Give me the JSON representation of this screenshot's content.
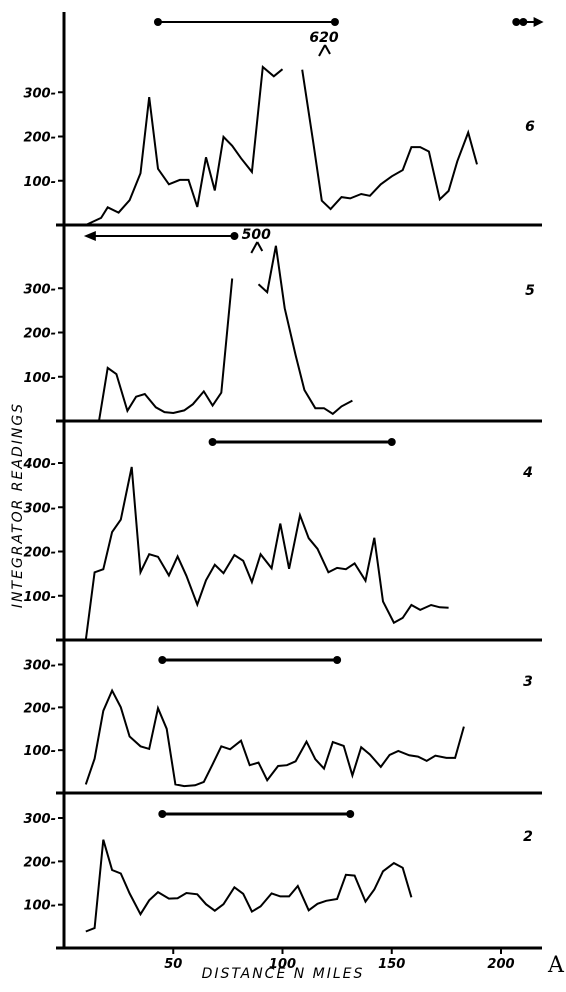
{
  "chart_data": {
    "type": "line",
    "x_label": "DISTANCE N MILES",
    "y_label": "INTEGRATOR READINGS",
    "figure_letter": "A",
    "x_ticks": [
      50,
      100,
      150,
      200
    ],
    "x_range": [
      0,
      218
    ],
    "panels": [
      {
        "name": "6",
        "y_ticks": [
          100,
          200,
          300
        ],
        "y_range": [
          0,
          420
        ],
        "bar": {
          "x_start": 43,
          "x_end": 124
        },
        "arrow": {
          "x_start": 207,
          "x_end": 214
        },
        "annotation": {
          "text": "620",
          "x": 119
        },
        "segments": [
          [
            [
              10,
              0
            ],
            [
              17,
              16
            ],
            [
              20,
              40
            ],
            [
              25,
              28
            ],
            [
              30,
              56
            ],
            [
              35,
              117
            ],
            [
              39,
              289
            ],
            [
              43,
              127
            ],
            [
              48,
              92
            ],
            [
              53,
              102
            ],
            [
              57,
              102
            ],
            [
              61,
              41
            ],
            [
              65,
              153
            ],
            [
              69,
              78
            ],
            [
              73,
              199
            ],
            [
              77,
              179
            ],
            [
              81,
              151
            ],
            [
              86,
              120
            ],
            [
              91,
              357
            ],
            [
              96,
              336
            ],
            [
              100,
              352
            ]
          ],
          [
            [
              109,
              351
            ],
            [
              114,
              189
            ],
            [
              118,
              55
            ],
            [
              122,
              36
            ],
            [
              127,
              63
            ],
            [
              131,
              60
            ],
            [
              136,
              70
            ],
            [
              140,
              66
            ],
            [
              145,
              92
            ],
            [
              150,
              110
            ],
            [
              155,
              124
            ],
            [
              159,
              176
            ],
            [
              163,
              176
            ],
            [
              167,
              166
            ],
            [
              172,
              58
            ],
            [
              176,
              77
            ],
            [
              180,
              144
            ],
            [
              185,
              209
            ],
            [
              189,
              137
            ]
          ]
        ]
      },
      {
        "name": "5",
        "y_ticks": [
          100,
          200,
          300
        ],
        "y_range": [
          0,
          420
        ],
        "arrow": {
          "x_start": 10,
          "x_end": 78
        },
        "annotation": {
          "text": "500",
          "x": 88
        },
        "segments": [
          [
            [
              10,
              0
            ],
            [
              16,
              0
            ],
            [
              20,
              120
            ],
            [
              24,
              106
            ],
            [
              29,
              23
            ],
            [
              33,
              55
            ],
            [
              37,
              61
            ],
            [
              42,
              31
            ],
            [
              46,
              20
            ],
            [
              50,
              18
            ],
            [
              55,
              24
            ],
            [
              59,
              38
            ],
            [
              64,
              67
            ],
            [
              68,
              35
            ],
            [
              72,
              64
            ],
            [
              77,
              322
            ]
          ],
          [
            [
              89,
              309
            ],
            [
              93,
              291
            ],
            [
              97,
              396
            ],
            [
              101,
              255
            ],
            [
              106,
              149
            ],
            [
              110,
              70
            ],
            [
              115,
              29
            ],
            [
              119,
              29
            ],
            [
              123,
              16
            ],
            [
              127,
              33
            ],
            [
              132,
              46
            ]
          ]
        ]
      },
      {
        "name": "4",
        "y_ticks": [
          100,
          200,
          300,
          400
        ],
        "y_range": [
          0,
          420
        ],
        "bar": {
          "x_start": 68,
          "x_end": 150
        },
        "segments": [
          [
            [
              10,
              0
            ],
            [
              14,
              153
            ],
            [
              18,
              160
            ],
            [
              22,
              244
            ],
            [
              26,
              272
            ],
            [
              31,
              391
            ],
            [
              35,
              153
            ],
            [
              39,
              194
            ],
            [
              43,
              188
            ],
            [
              48,
              146
            ],
            [
              52,
              189
            ],
            [
              56,
              145
            ],
            [
              61,
              80
            ],
            [
              65,
              135
            ],
            [
              69,
              170
            ],
            [
              73,
              151
            ],
            [
              78,
              192
            ],
            [
              82,
              179
            ],
            [
              86,
              131
            ],
            [
              90,
              194
            ],
            [
              95,
              162
            ],
            [
              99,
              263
            ],
            [
              103,
              161
            ],
            [
              108,
              282
            ],
            [
              112,
              230
            ],
            [
              116,
              206
            ],
            [
              121,
              153
            ],
            [
              125,
              163
            ],
            [
              129,
              160
            ],
            [
              133,
              173
            ],
            [
              138,
              134
            ],
            [
              142,
              231
            ],
            [
              146,
              87
            ],
            [
              151,
              39
            ],
            [
              155,
              50
            ],
            [
              159,
              79
            ],
            [
              163,
              68
            ],
            [
              168,
              79
            ],
            [
              172,
              74
            ],
            [
              176,
              73
            ]
          ]
        ]
      },
      {
        "name": "3",
        "y_ticks": [
          100,
          200,
          300
        ],
        "y_range": [
          0,
          320
        ],
        "bar": {
          "x_start": 45,
          "x_end": 125
        },
        "segments": [
          [
            [
              10,
              20
            ],
            [
              14,
              80
            ],
            [
              18,
              192
            ],
            [
              22,
              239
            ],
            [
              26,
              200
            ],
            [
              30,
              132
            ],
            [
              35,
              109
            ],
            [
              39,
              103
            ],
            [
              43,
              198
            ],
            [
              47,
              150
            ],
            [
              51,
              20
            ],
            [
              55,
              16
            ],
            [
              60,
              18
            ],
            [
              64,
              26
            ],
            [
              68,
              67
            ],
            [
              72,
              109
            ],
            [
              76,
              102
            ],
            [
              81,
              122
            ],
            [
              85,
              65
            ],
            [
              89,
              71
            ],
            [
              93,
              30
            ],
            [
              98,
              63
            ],
            [
              102,
              65
            ],
            [
              106,
              74
            ],
            [
              111,
              120
            ],
            [
              115,
              79
            ],
            [
              119,
              57
            ],
            [
              123,
              119
            ],
            [
              128,
              110
            ],
            [
              132,
              41
            ],
            [
              136,
              107
            ],
            [
              140,
              90
            ],
            [
              145,
              61
            ],
            [
              149,
              89
            ],
            [
              153,
              98
            ],
            [
              158,
              88
            ],
            [
              162,
              85
            ],
            [
              166,
              75
            ],
            [
              170,
              87
            ],
            [
              175,
              82
            ],
            [
              179,
              82
            ],
            [
              183,
              155
            ]
          ]
        ]
      },
      {
        "name": "2",
        "y_ticks": [
          100,
          200,
          300
        ],
        "y_range": [
          0,
          320
        ],
        "bar": {
          "x_start": 45,
          "x_end": 131
        },
        "segments": [
          [
            [
              10,
              38
            ],
            [
              14,
              46
            ],
            [
              18,
              250
            ],
            [
              22,
              180
            ],
            [
              26,
              172
            ],
            [
              30,
              126
            ],
            [
              35,
              78
            ],
            [
              39,
              110
            ],
            [
              43,
              129
            ],
            [
              48,
              114
            ],
            [
              52,
              115
            ],
            [
              56,
              127
            ],
            [
              61,
              124
            ],
            [
              65,
              101
            ],
            [
              69,
              86
            ],
            [
              73,
              101
            ],
            [
              78,
              140
            ],
            [
              82,
              125
            ],
            [
              86,
              84
            ],
            [
              90,
              96
            ],
            [
              95,
              126
            ],
            [
              99,
              119
            ],
            [
              103,
              119
            ],
            [
              107,
              143
            ],
            [
              112,
              87
            ],
            [
              116,
              102
            ],
            [
              120,
              109
            ],
            [
              125,
              113
            ],
            [
              129,
              169
            ],
            [
              133,
              167
            ],
            [
              138,
              107
            ],
            [
              142,
              135
            ],
            [
              146,
              177
            ],
            [
              151,
              196
            ],
            [
              155,
              185
            ],
            [
              159,
              117
            ]
          ]
        ]
      }
    ]
  }
}
